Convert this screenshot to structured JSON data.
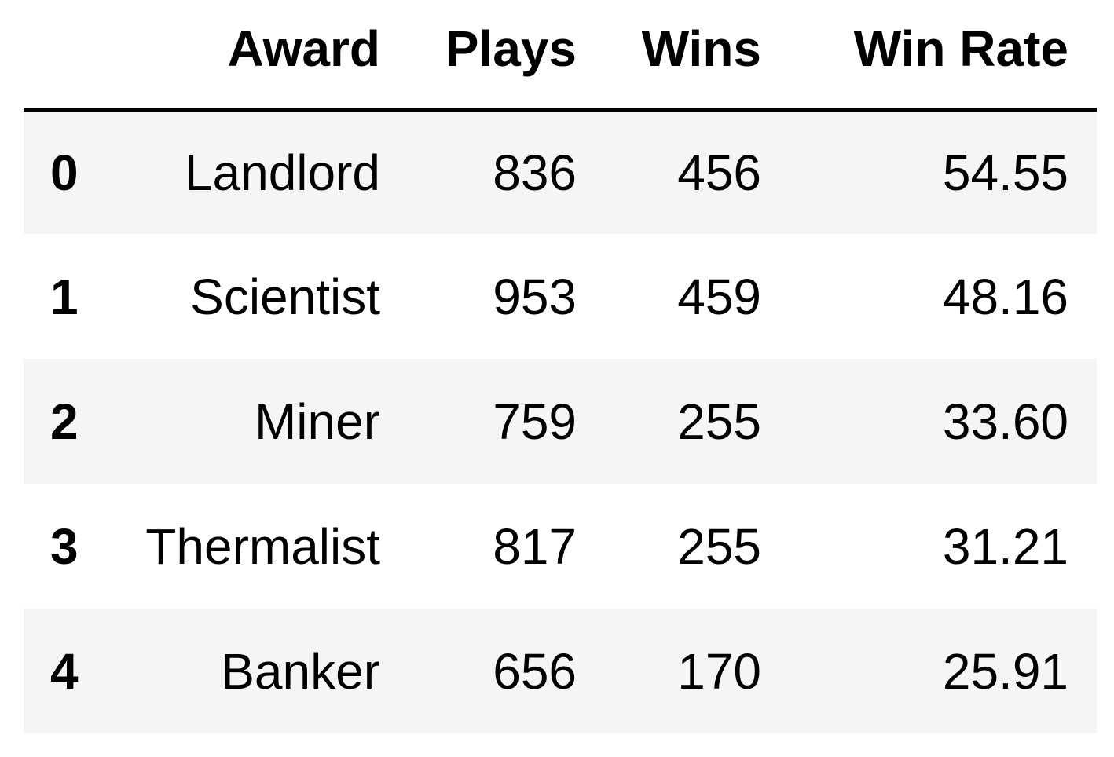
{
  "table": {
    "columns": [
      "",
      "Award",
      "Plays",
      "Wins",
      "Win Rate"
    ],
    "rows": [
      {
        "index": "0",
        "award": "Landlord",
        "plays": "836",
        "wins": "456",
        "win_rate": "54.55"
      },
      {
        "index": "1",
        "award": "Scientist",
        "plays": "953",
        "wins": "459",
        "win_rate": "48.16"
      },
      {
        "index": "2",
        "award": "Miner",
        "plays": "759",
        "wins": "255",
        "win_rate": "33.60"
      },
      {
        "index": "3",
        "award": "Thermalist",
        "plays": "817",
        "wins": "255",
        "win_rate": "31.21"
      },
      {
        "index": "4",
        "award": "Banker",
        "plays": "656",
        "wins": "170",
        "win_rate": "25.91"
      }
    ]
  }
}
